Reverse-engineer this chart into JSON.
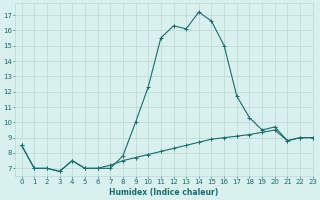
{
  "x": [
    0,
    1,
    2,
    3,
    4,
    5,
    6,
    7,
    8,
    9,
    10,
    11,
    12,
    13,
    14,
    15,
    16,
    17,
    18,
    19,
    20,
    21,
    22,
    23
  ],
  "y_main": [
    8.5,
    7.0,
    7.0,
    6.8,
    7.5,
    7.0,
    7.0,
    7.0,
    7.8,
    10.0,
    12.3,
    15.5,
    16.3,
    16.1,
    17.2,
    16.6,
    15.0,
    11.7,
    10.3,
    9.5,
    9.7,
    8.8,
    9.0,
    9.0
  ],
  "y_flat": [
    8.5,
    7.0,
    7.0,
    6.8,
    7.5,
    7.0,
    7.0,
    7.2,
    7.5,
    7.7,
    7.9,
    8.1,
    8.3,
    8.5,
    8.7,
    8.9,
    9.0,
    9.1,
    9.2,
    9.35,
    9.5,
    8.8,
    9.0,
    9.0
  ],
  "line_color": "#1a6b6b",
  "bg_color": "#d8f0ee",
  "grid_color": "#b8d8d4",
  "xlabel": "Humidex (Indice chaleur)",
  "ylim": [
    6.5,
    17.8
  ],
  "xlim": [
    -0.5,
    23
  ],
  "yticks": [
    7,
    8,
    9,
    10,
    11,
    12,
    13,
    14,
    15,
    16,
    17
  ],
  "xticks": [
    0,
    1,
    2,
    3,
    4,
    5,
    6,
    7,
    8,
    9,
    10,
    11,
    12,
    13,
    14,
    15,
    16,
    17,
    18,
    19,
    20,
    21,
    22,
    23
  ],
  "tick_fontsize": 5.0,
  "xlabel_fontsize": 5.5
}
